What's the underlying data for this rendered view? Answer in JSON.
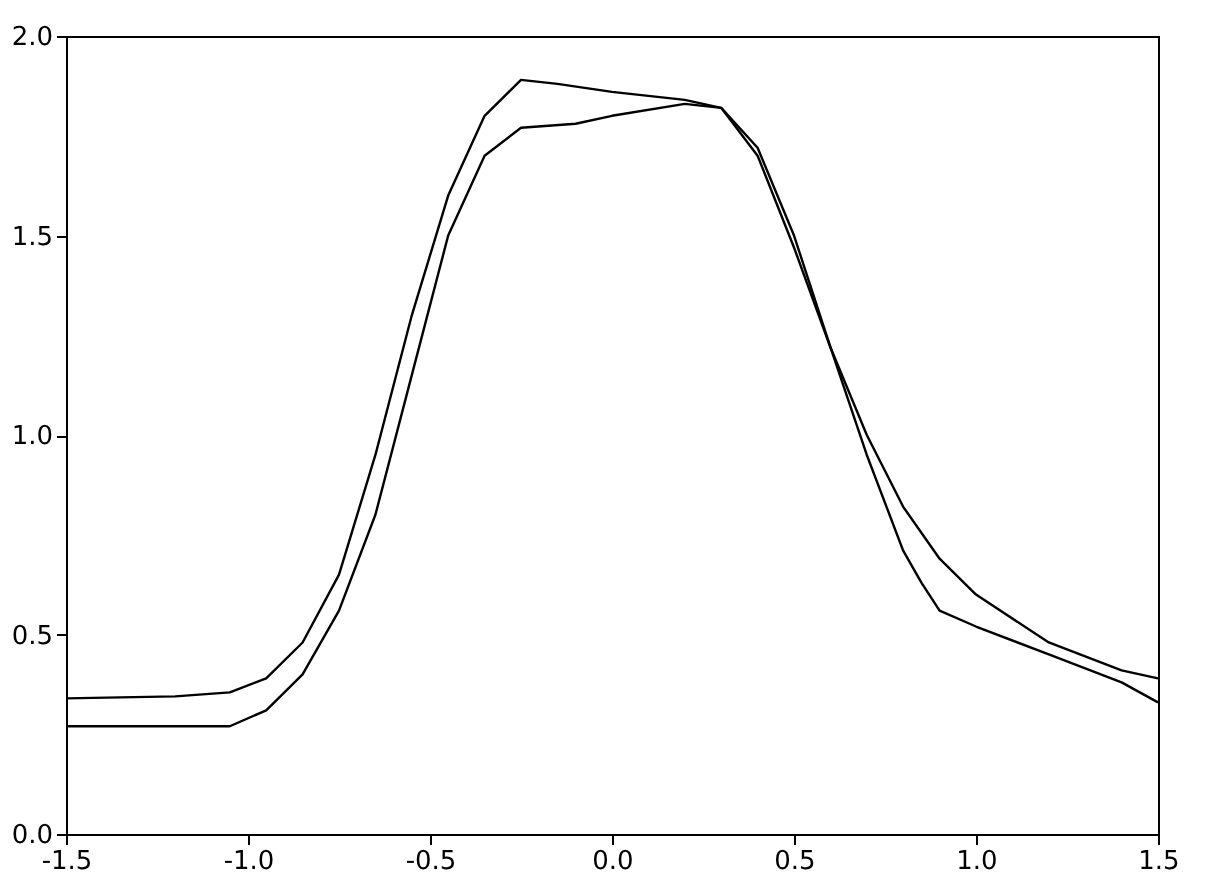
{
  "chart_data": {
    "type": "line",
    "xlim": [
      -1.5,
      1.5
    ],
    "ylim": [
      0.0,
      2.0
    ],
    "xticks": [
      {
        "value": -1.5,
        "label": "-1.5"
      },
      {
        "value": -1.0,
        "label": "-1.0"
      },
      {
        "value": -0.5,
        "label": "-0.5"
      },
      {
        "value": 0.0,
        "label": "0.0"
      },
      {
        "value": 0.5,
        "label": "0.5"
      },
      {
        "value": 1.0,
        "label": "1.0"
      },
      {
        "value": 1.5,
        "label": "1.5"
      }
    ],
    "yticks": [
      {
        "value": 0.0,
        "label": "0.0"
      },
      {
        "value": 0.5,
        "label": "0.5"
      },
      {
        "value": 1.0,
        "label": "1.0"
      },
      {
        "value": 1.5,
        "label": "1.5"
      },
      {
        "value": 2.0,
        "label": "2.0"
      }
    ],
    "grid": false,
    "legend": false,
    "marker": "none",
    "line_style": "solid",
    "series": [
      {
        "color": "#000000",
        "x": [
          -1.5,
          -1.2,
          -1.05,
          -0.95,
          -0.85,
          -0.75,
          -0.65,
          -0.55,
          -0.45,
          -0.35,
          -0.25,
          -0.15,
          0.0,
          0.2,
          0.3,
          0.4,
          0.5,
          0.6,
          0.7,
          0.8,
          0.9,
          1.0,
          1.2,
          1.4,
          1.5
        ],
        "values": [
          0.34,
          0.345,
          0.355,
          0.39,
          0.48,
          0.65,
          0.95,
          1.3,
          1.6,
          1.8,
          1.89,
          1.88,
          1.86,
          1.84,
          1.82,
          1.72,
          1.5,
          1.22,
          1.0,
          0.82,
          0.69,
          0.6,
          0.48,
          0.41,
          0.39
        ]
      },
      {
        "color": "#000000",
        "x": [
          -1.5,
          -1.05,
          -0.95,
          -0.85,
          -0.75,
          -0.65,
          -0.55,
          -0.45,
          -0.35,
          -0.25,
          -0.1,
          0.0,
          0.2,
          0.3,
          0.4,
          0.5,
          0.6,
          0.7,
          0.8,
          0.85,
          0.9,
          1.0,
          1.2,
          1.4,
          1.5
        ],
        "values": [
          0.27,
          0.27,
          0.31,
          0.4,
          0.56,
          0.8,
          1.15,
          1.5,
          1.7,
          1.77,
          1.78,
          1.8,
          1.83,
          1.82,
          1.7,
          1.47,
          1.22,
          0.95,
          0.71,
          0.63,
          0.56,
          0.52,
          0.45,
          0.38,
          0.33
        ]
      }
    ]
  }
}
